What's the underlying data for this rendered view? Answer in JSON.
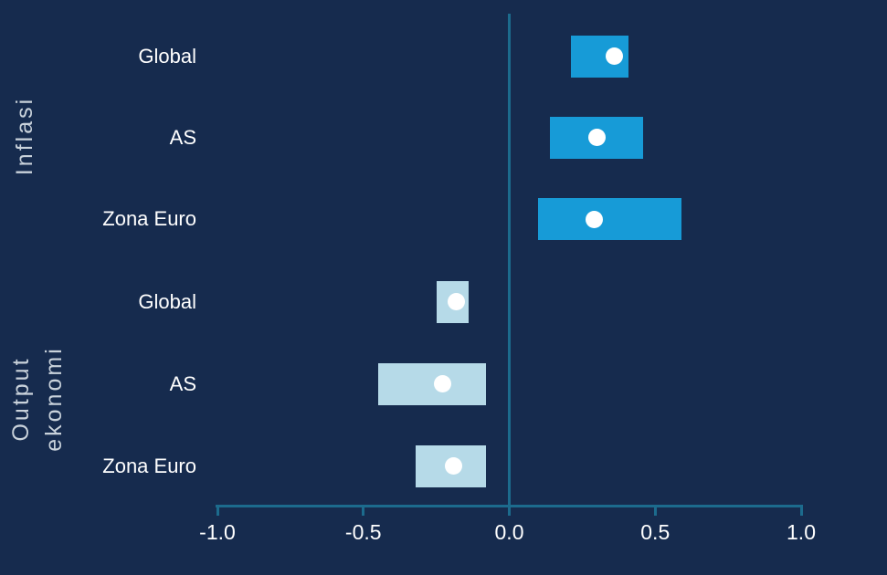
{
  "colors": {
    "background": "#162B4E",
    "axis": "#1C6B8D",
    "inflation_bar": "#179BD7",
    "output_bar": "#B6DAE8",
    "dot": "#FFFFFF",
    "category_label": "#FFFFFF",
    "tick_label": "#FFFFFF",
    "group_label": "#C9D2DB"
  },
  "group_labels": [
    {
      "id": "inflasi",
      "lines": [
        "Inflasi"
      ]
    },
    {
      "id": "output-ekonomi",
      "lines": [
        "Output",
        "ekonomi"
      ]
    }
  ],
  "chart_data": {
    "type": "bar",
    "subtype": "horizontal-range-bar-with-point-estimate",
    "title": "",
    "xlabel": "",
    "ylabel": "",
    "xlim": [
      -1.0,
      1.0
    ],
    "x_tick_values": [
      -1.0,
      -0.5,
      0.0,
      0.5,
      1.0
    ],
    "x_ticks": [
      "-1.0",
      "-0.5",
      "0.0",
      "0.5",
      "1.0"
    ],
    "grid": false,
    "legend": false,
    "groups": [
      {
        "label": "Inflasi",
        "bar_color": "#179BD7",
        "rows": [
          {
            "category": "Global",
            "range_low": 0.21,
            "range_high": 0.41,
            "point": 0.36
          },
          {
            "category": "AS",
            "range_low": 0.14,
            "range_high": 0.46,
            "point": 0.3
          },
          {
            "category": "Zona Euro",
            "range_low": 0.1,
            "range_high": 0.59,
            "point": 0.29
          }
        ]
      },
      {
        "label": "Output ekonomi",
        "bar_color": "#B6DAE8",
        "rows": [
          {
            "category": "Global",
            "range_low": -0.25,
            "range_high": -0.14,
            "point": -0.18
          },
          {
            "category": "AS",
            "range_low": -0.45,
            "range_high": -0.08,
            "point": -0.23
          },
          {
            "category": "Zona Euro",
            "range_low": -0.32,
            "range_high": -0.08,
            "point": -0.19
          }
        ]
      }
    ]
  }
}
